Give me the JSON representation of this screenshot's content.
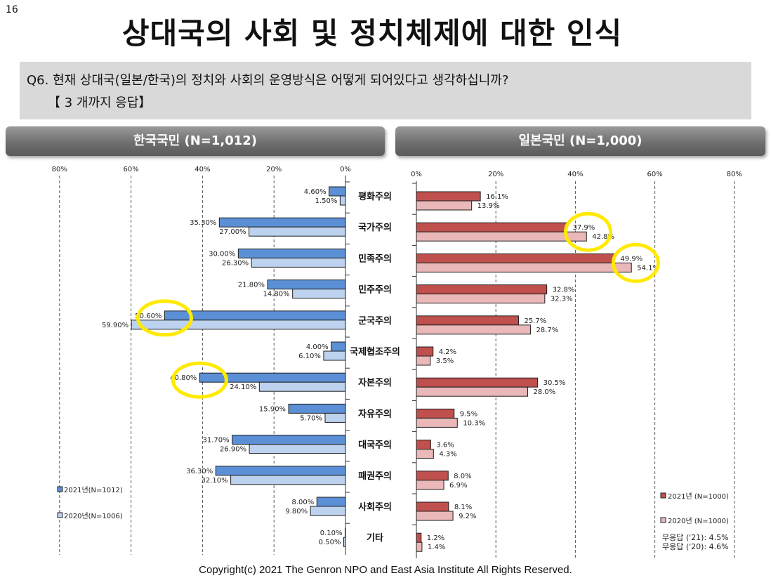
{
  "page_number": "16",
  "title": "상대국의 사회 및 정치체제에 대한 인식",
  "question": {
    "line1": "Q6. 현재 상대국(일본/한국)의 정치와 사회의 운영방식은 어떻게 되어있다고 생각하십니까?",
    "line2": "【 3 개까지 응답】"
  },
  "panels": {
    "left_title": "한국국민 (N=1,012)",
    "right_title": "일본국민 (N=1,000)"
  },
  "colors": {
    "kr_2021": "#5b8fd6",
    "kr_2020": "#bcd2ee",
    "jp_2021": "#c0504d",
    "jp_2020": "#eab8b8",
    "highlight": "#ffea00"
  },
  "chart_data": [
    {
      "type": "bar",
      "orientation": "horizontal-reversed",
      "categories": [
        "평화주의",
        "국가주의",
        "민족주의",
        "민주주의",
        "군국주의",
        "국제협조주의",
        "자본주의",
        "자유주의",
        "대국주의",
        "패권주의",
        "사회주의",
        "기타"
      ],
      "series": [
        {
          "name": "2021년(N=1012)",
          "values": [
            4.6,
            35.3,
            30.0,
            21.8,
            50.6,
            4.0,
            40.8,
            15.9,
            31.7,
            36.3,
            8.0,
            0.1
          ],
          "labels": [
            "4.60%",
            "35.30%",
            "30.00%",
            "21.80%",
            "50.60%",
            "4.00%",
            "40.80%",
            "15.90%",
            "31.70%",
            "36.30%",
            "8.00%",
            "0.10%"
          ]
        },
        {
          "name": "2020년(N=1006)",
          "values": [
            1.5,
            27.0,
            26.3,
            14.8,
            59.9,
            6.1,
            24.1,
            5.7,
            26.9,
            32.1,
            9.8,
            0.5
          ],
          "labels": [
            "1.50%",
            "27.00%",
            "26.30%",
            "14.80%",
            "59.90%",
            "6.10%",
            "24.10%",
            "5.70%",
            "26.90%",
            "32.10%",
            "9.80%",
            "0.50%"
          ]
        }
      ],
      "xlim": [
        0,
        80
      ],
      "tick_labels": [
        "80%",
        "60%",
        "40%",
        "20%",
        "0%"
      ],
      "highlighted": [
        [
          "군국주의",
          0
        ],
        [
          "자본주의",
          0
        ]
      ]
    },
    {
      "type": "bar",
      "orientation": "horizontal",
      "categories": [
        "평화주의",
        "국가주의",
        "민족주의",
        "민주주의",
        "군국주의",
        "국제협조주의",
        "자본주의",
        "자유주의",
        "대국주의",
        "패권주의",
        "사회주의",
        "기타"
      ],
      "series": [
        {
          "name": "2021년 (N=1000)",
          "values": [
            16.1,
            37.9,
            49.9,
            32.8,
            25.7,
            4.2,
            30.5,
            9.5,
            3.6,
            8.0,
            8.1,
            1.2
          ],
          "labels": [
            "16.1%",
            "37.9%",
            "49.9%",
            "32.8%",
            "25.7%",
            "4.2%",
            "30.5%",
            "9.5%",
            "3.6%",
            "8.0%",
            "8.1%",
            "1.2%"
          ]
        },
        {
          "name": "2020년 (N=1000)",
          "values": [
            13.9,
            42.8,
            54.1,
            32.3,
            28.7,
            3.5,
            28.0,
            10.3,
            4.3,
            6.9,
            9.2,
            1.4
          ],
          "labels": [
            "13.9%",
            "42.8%",
            "54.1%",
            "32.3%",
            "28.7%",
            "3.5%",
            "28.0%",
            "10.3%",
            "4.3%",
            "6.9%",
            "9.2%",
            "1.4%"
          ]
        }
      ],
      "xlim": [
        0,
        80
      ],
      "tick_labels": [
        "0%",
        "20%",
        "40%",
        "60%",
        "80%"
      ],
      "highlighted": [
        [
          "국가주의",
          0
        ],
        [
          "민족주의",
          0
        ]
      ],
      "notes": [
        "무응답 ('21): 4.5%",
        "무응답 ('20): 4.6%"
      ]
    }
  ],
  "copyright": "Copyright(c) 2021 The Genron NPO and East Asia Institute  All Rights Reserved."
}
